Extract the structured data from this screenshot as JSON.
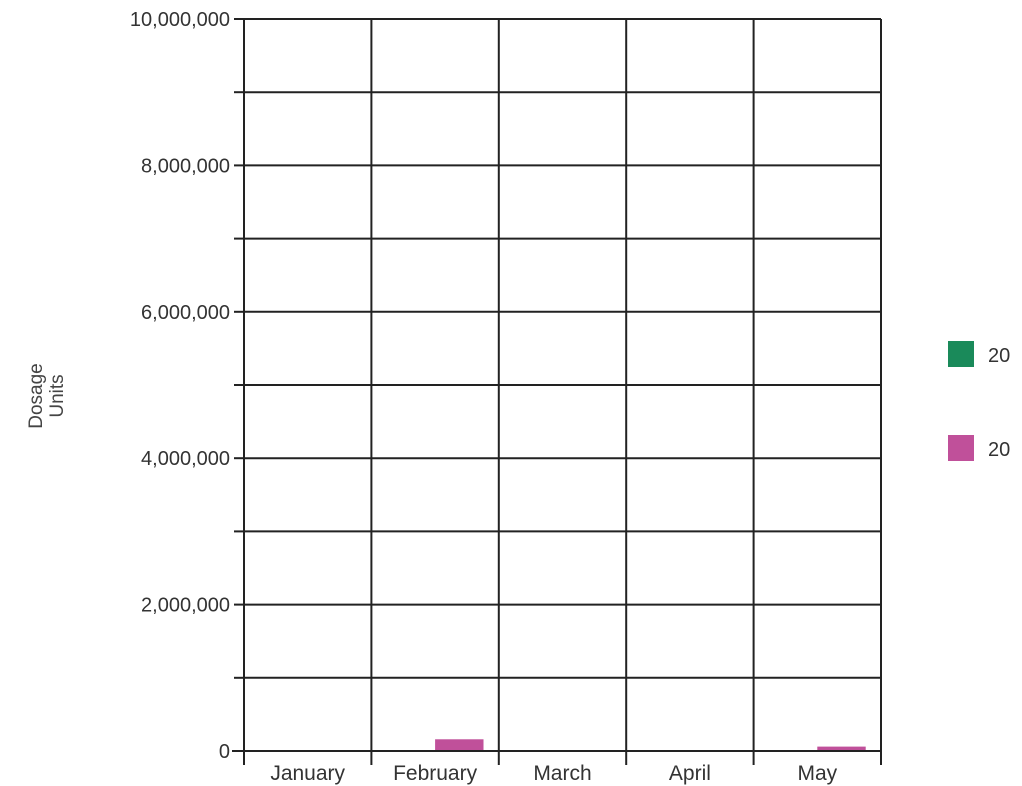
{
  "chart_data": {
    "type": "bar",
    "categories": [
      "January",
      "February",
      "March",
      "April",
      "May"
    ],
    "series": [
      {
        "name": "20",
        "color": "#1a8a5a",
        "values": [
          0,
          0,
          0,
          0,
          0
        ]
      },
      {
        "name": "20",
        "color": "#c0509a",
        "values": [
          0,
          160000,
          0,
          0,
          60000
        ]
      }
    ],
    "ylabel_lines": [
      "Dosage",
      "Units"
    ],
    "xlabel": "",
    "title": "",
    "ylim": [
      0,
      10000000
    ],
    "yticks": [
      0,
      2000000,
      4000000,
      6000000,
      8000000,
      10000000
    ],
    "ytick_labels": [
      "0",
      "2,000,000",
      "4,000,000",
      "6,000,000",
      "8,000,000",
      "10,000,000"
    ],
    "minor_gridlines": [
      1000000,
      3000000,
      5000000,
      7000000,
      9000000
    ],
    "grid": true,
    "legend_position": "right"
  }
}
